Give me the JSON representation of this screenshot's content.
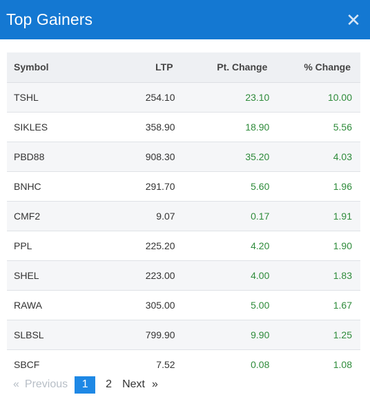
{
  "modal": {
    "title": "Top Gainers",
    "close_icon": "close-icon"
  },
  "table": {
    "headers": {
      "symbol": "Symbol",
      "ltp": "LTP",
      "pt_change": "Pt. Change",
      "pct_change": "% Change"
    },
    "rows": [
      {
        "symbol": "TSHL",
        "ltp": "254.10",
        "pt_change": "23.10",
        "pct_change": "10.00"
      },
      {
        "symbol": "SIKLES",
        "ltp": "358.90",
        "pt_change": "18.90",
        "pct_change": "5.56"
      },
      {
        "symbol": "PBD88",
        "ltp": "908.30",
        "pt_change": "35.20",
        "pct_change": "4.03"
      },
      {
        "symbol": "BNHC",
        "ltp": "291.70",
        "pt_change": "5.60",
        "pct_change": "1.96"
      },
      {
        "symbol": "CMF2",
        "ltp": "9.07",
        "pt_change": "0.17",
        "pct_change": "1.91"
      },
      {
        "symbol": "PPL",
        "ltp": "225.20",
        "pt_change": "4.20",
        "pct_change": "1.90"
      },
      {
        "symbol": "SHEL",
        "ltp": "223.00",
        "pt_change": "4.00",
        "pct_change": "1.83"
      },
      {
        "symbol": "RAWA",
        "ltp": "305.00",
        "pt_change": "5.00",
        "pct_change": "1.67"
      },
      {
        "symbol": "SLBSL",
        "ltp": "799.90",
        "pt_change": "9.90",
        "pct_change": "1.25"
      },
      {
        "symbol": "SBCF",
        "ltp": "7.52",
        "pt_change": "0.08",
        "pct_change": "1.08"
      }
    ]
  },
  "pagination": {
    "prev_glyph": "«",
    "prev_label": "Previous",
    "pages": [
      "1",
      "2"
    ],
    "current_page": "1",
    "next_label": "Next",
    "next_glyph": "»"
  },
  "colors": {
    "header": "#1478d2",
    "positive": "#2e8b3a",
    "active_page": "#1e88e5"
  }
}
